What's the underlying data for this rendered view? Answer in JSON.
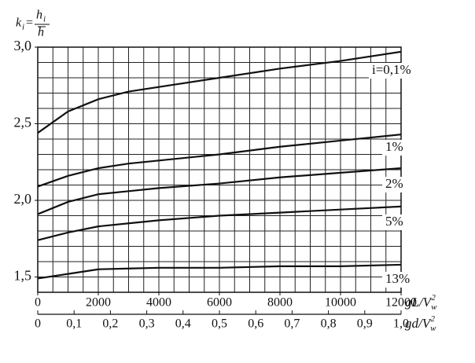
{
  "chart_data": {
    "type": "line",
    "y_label": {
      "k": "k",
      "k_sub": "i",
      "eq": "=",
      "num": "h",
      "num_sub": "i",
      "den": "h"
    },
    "x_label": {
      "main": "gL/V",
      "sub": "w",
      "sup": "2"
    },
    "x2_label": {
      "main": "gd/V",
      "sub": "w",
      "sup": "2"
    },
    "x": [
      0,
      1000,
      2000,
      3000,
      4000,
      6000,
      8000,
      10000,
      12000
    ],
    "series": [
      {
        "name": "i=0,1%",
        "color": "#111111",
        "values": [
          2.44,
          2.58,
          2.66,
          2.71,
          2.74,
          2.8,
          2.86,
          2.91,
          2.97
        ]
      },
      {
        "name": "1%",
        "color": "#111111",
        "values": [
          2.09,
          2.16,
          2.21,
          2.24,
          2.26,
          2.3,
          2.35,
          2.39,
          2.43
        ]
      },
      {
        "name": "2%",
        "color": "#111111",
        "values": [
          1.91,
          1.99,
          2.04,
          2.06,
          2.08,
          2.11,
          2.15,
          2.18,
          2.21
        ]
      },
      {
        "name": "5%",
        "color": "#111111",
        "values": [
          1.74,
          1.79,
          1.83,
          1.85,
          1.87,
          1.9,
          1.92,
          1.94,
          1.96
        ]
      },
      {
        "name": "13%",
        "color": "#111111",
        "values": [
          1.49,
          1.52,
          1.55,
          1.555,
          1.56,
          1.56,
          1.57,
          1.57,
          1.58
        ]
      }
    ],
    "xlim": [
      0,
      12000
    ],
    "xticks": [
      0,
      2000,
      4000,
      6000,
      8000,
      10000,
      12000
    ],
    "x2lim": [
      0,
      1
    ],
    "x2ticks": [
      0,
      {
        "value": 0.1,
        "label": "0,1"
      },
      {
        "value": 0.2,
        "label": "0,2"
      },
      {
        "value": 0.3,
        "label": "0,3"
      },
      {
        "value": 0.4,
        "label": "0,4"
      },
      {
        "value": 0.5,
        "label": "0,5"
      },
      {
        "value": 0.6,
        "label": "0,6"
      },
      {
        "value": 0.7,
        "label": "0,7"
      },
      {
        "value": 0.8,
        "label": "0,8"
      },
      {
        "value": 0.9,
        "label": "0,9"
      },
      {
        "value": 1,
        "label": "1,0"
      }
    ],
    "ylim": [
      1.4,
      3.0
    ],
    "yticks": [
      {
        "value": 1.5,
        "label": "1,5"
      },
      {
        "value": 2.0,
        "label": "2,0"
      },
      {
        "value": 2.5,
        "label": "2,5"
      },
      {
        "value": 3.0,
        "label": "3,0"
      }
    ],
    "xgrid": [
      0,
      500,
      1000,
      1500,
      2000,
      2500,
      3000,
      3500,
      4000,
      4500,
      5000,
      5500,
      6000,
      6500,
      7000,
      7500,
      8000,
      8500,
      9000,
      9500,
      10000,
      10500,
      11000,
      11500,
      12000
    ],
    "ygrid": [
      1.4,
      1.5,
      1.6,
      1.7,
      1.8,
      1.9,
      2.0,
      2.1,
      2.2,
      2.3,
      2.4,
      2.5,
      2.6,
      2.7,
      2.8,
      2.9,
      3.0
    ],
    "grid": true
  }
}
